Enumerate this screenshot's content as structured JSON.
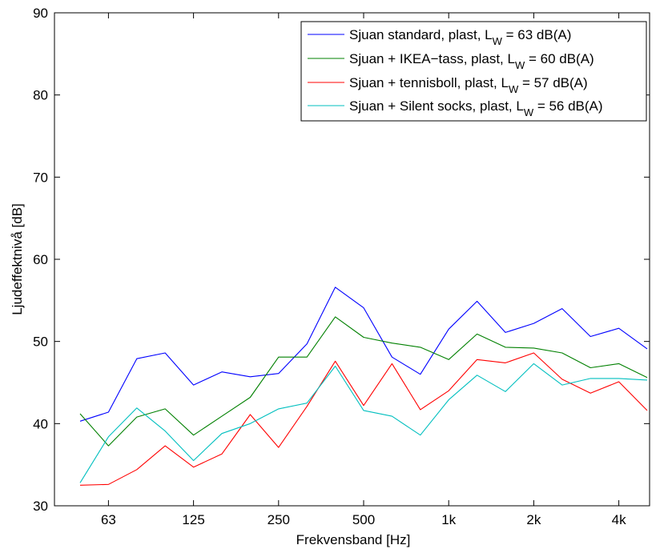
{
  "chart_data": {
    "type": "line",
    "title": "",
    "xlabel": "Frekvensband [Hz]",
    "ylabel": "Ljudeffektnivå [dB]",
    "ylim": [
      30,
      90
    ],
    "yticks": [
      30,
      40,
      50,
      60,
      70,
      80,
      90
    ],
    "x_tick_labels": [
      "63",
      "125",
      "250",
      "500",
      "1k",
      "2k",
      "4k"
    ],
    "x_tick_indices": [
      1,
      4,
      7,
      10,
      13,
      16,
      19
    ],
    "x_bands": [
      "50",
      "63",
      "80",
      "100",
      "125",
      "160",
      "200",
      "250",
      "315",
      "400",
      "500",
      "630",
      "800",
      "1k",
      "1.25k",
      "1.6k",
      "2k",
      "2.5k",
      "3.15k",
      "4k",
      "5k"
    ],
    "grid": false,
    "legend_position": "top-right",
    "series": [
      {
        "name_main": "Sjuan standard, plast, L",
        "name_sub": "W",
        "name_tail": " = 63 dB(A)",
        "color": "#0000ff",
        "values": [
          40.3,
          41.4,
          47.9,
          48.6,
          44.7,
          46.3,
          45.7,
          46.1,
          49.7,
          56.6,
          54.1,
          48.1,
          46.0,
          51.5,
          54.9,
          51.1,
          52.2,
          54.0,
          50.6,
          51.6,
          49.1
        ]
      },
      {
        "name_main": "Sjuan + IKEA−tass, plast, L",
        "name_sub": "W",
        "name_tail": " = 60 dB(A)",
        "color": "#008000",
        "values": [
          41.2,
          37.3,
          40.8,
          41.8,
          38.6,
          40.9,
          43.2,
          48.1,
          48.1,
          53.0,
          50.5,
          49.8,
          49.3,
          47.8,
          50.9,
          49.3,
          49.2,
          48.6,
          46.8,
          47.3,
          45.6
        ]
      },
      {
        "name_main": "Sjuan + tennisboll, plast, L",
        "name_sub": "W",
        "name_tail": " = 57 dB(A)",
        "color": "#ff0000",
        "values": [
          32.5,
          32.6,
          34.4,
          37.3,
          34.7,
          36.3,
          41.1,
          37.1,
          42.1,
          47.6,
          42.2,
          47.3,
          41.7,
          44.0,
          47.8,
          47.4,
          48.6,
          45.4,
          43.7,
          45.1,
          41.6
        ]
      },
      {
        "name_main": "Sjuan + Silent socks, plast, L",
        "name_sub": "W",
        "name_tail": " = 56 dB(A)",
        "color": "#00bfbf",
        "values": [
          32.8,
          38.4,
          41.9,
          39.1,
          35.5,
          38.8,
          40.0,
          41.8,
          42.5,
          47.0,
          41.6,
          40.9,
          38.6,
          42.9,
          45.9,
          43.9,
          47.3,
          44.7,
          45.5,
          45.5,
          45.3
        ]
      }
    ]
  }
}
